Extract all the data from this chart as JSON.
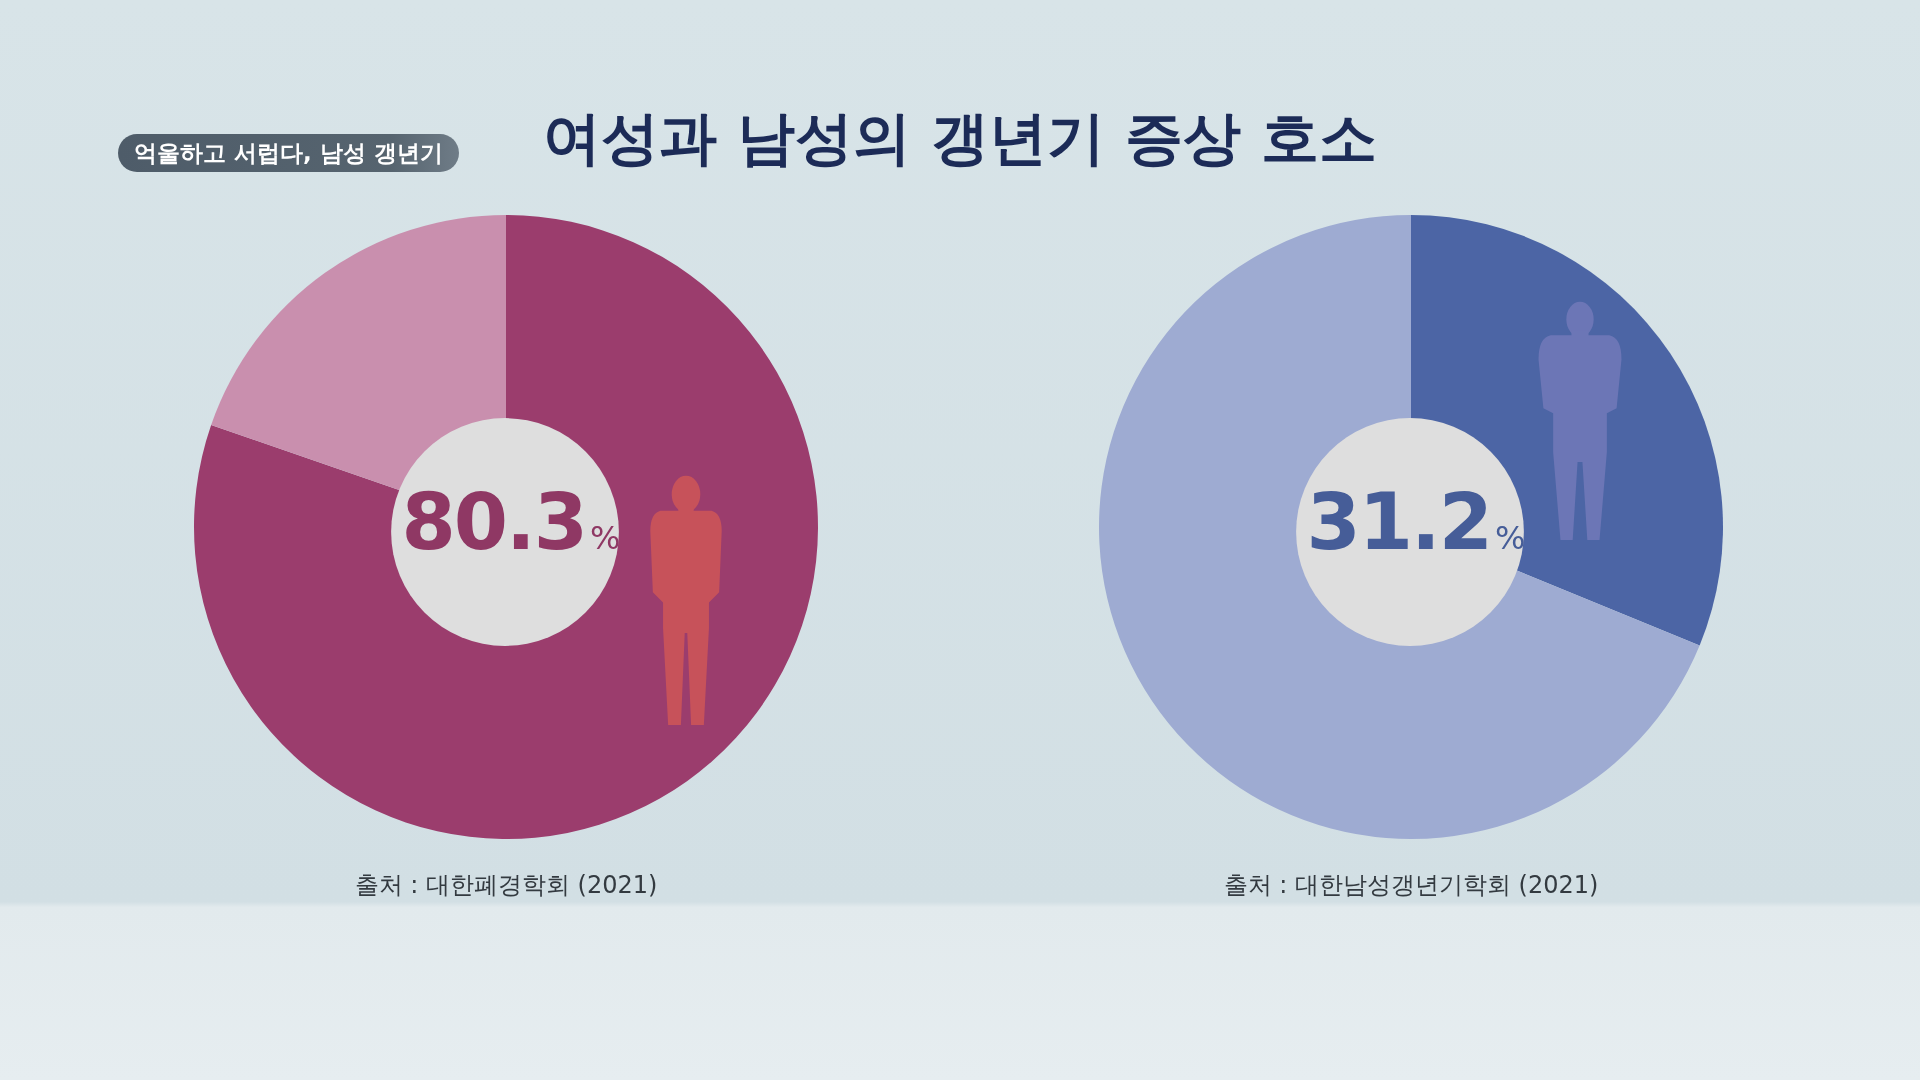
{
  "chart_data": [
    {
      "type": "pie",
      "title": "여성과 남성의 갱년기 증상 호소",
      "subtitle": "억울하고 서럽다, 남성 갱년기",
      "categories": [
        null,
        null
      ],
      "values": [
        80.3,
        19.7
      ],
      "colors": [
        "#9b3d6d",
        "#c98fae"
      ],
      "value_labels": [
        "80.3%",
        null
      ],
      "annotations": [
        "출처 : 대한폐경학회 (2021)"
      ]
    },
    {
      "type": "pie",
      "categories": [
        null,
        null
      ],
      "values": [
        31.2,
        68.8
      ],
      "colors": [
        "#4c65a5",
        "#9eabd2"
      ],
      "value_labels": [
        "31.2%",
        null
      ],
      "annotations": [
        "출처 : 대한남성갱년기학회 (2021)"
      ]
    }
  ]
}
